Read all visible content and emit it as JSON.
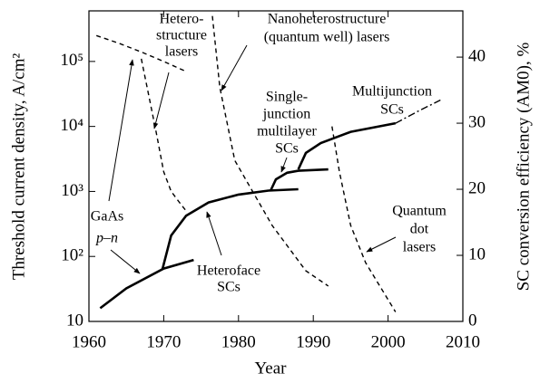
{
  "chart_data": {
    "type": "line",
    "xlabel": "Year",
    "ylabel": "Threshold current density, A/cm²",
    "y2label": "SC conversion efficiency (AM0), %",
    "xlim": [
      1960,
      2010
    ],
    "xticks": [
      1960,
      1970,
      1980,
      1990,
      2000,
      2010
    ],
    "ylim": [
      10,
      600000
    ],
    "ylog": true,
    "yticks": [
      10,
      {
        "value": 100,
        "label": "10²"
      },
      {
        "value": 1000,
        "label": "10³"
      },
      {
        "value": 10000,
        "label": "10⁴"
      },
      {
        "value": 100000,
        "label": "10⁵"
      }
    ],
    "y2lim": [
      0,
      47
    ],
    "y2ticks": [
      0,
      10,
      20,
      30,
      40
    ],
    "series": [
      {
        "color": "#000000",
        "style": "dashed",
        "axis": "y",
        "x": [
          1961,
          1964,
          1967,
          1970,
          1973
        ],
        "values": [
          250000,
          190000,
          140000,
          100000,
          70000
        ]
      },
      {
        "color": "#000000",
        "style": "dashed",
        "axis": "y",
        "x": [
          1967,
          1968,
          1969,
          1970,
          1971,
          1972,
          1973
        ],
        "values": [
          110000,
          30000,
          8000,
          2000,
          1000,
          700,
          500
        ]
      },
      {
        "color": "#000000",
        "style": "dashed",
        "axis": "y",
        "x": [
          1976.5,
          1977.5,
          1979.5,
          1984.5,
          1989,
          1992
        ],
        "values": [
          500000,
          40000,
          3000,
          300,
          60,
          35
        ]
      },
      {
        "color": "#000000",
        "style": "dashed",
        "axis": "y",
        "x": [
          1992.5,
          1993.5,
          1995,
          1997,
          2001
        ],
        "values": [
          10000,
          2000,
          300,
          80,
          14
        ]
      },
      {
        "color": "#000000",
        "style": "solid",
        "axis": "y2",
        "x": [
          1961.5,
          1965,
          1970,
          1974
        ],
        "values": [
          2,
          5,
          8,
          9.3
        ]
      },
      {
        "color": "#000000",
        "style": "solid",
        "axis": "y2",
        "x": [
          1969.8,
          1971,
          1973,
          1976,
          1980,
          1984,
          1988
        ],
        "values": [
          7.8,
          13,
          16,
          18,
          19.2,
          19.8,
          20
        ]
      },
      {
        "color": "#000000",
        "style": "solid",
        "axis": "y2",
        "x": [
          1984.3,
          1985,
          1986.5,
          1988,
          1992
        ],
        "values": [
          19.8,
          21.5,
          22.5,
          22.8,
          23
        ]
      },
      {
        "color": "#000000",
        "style": "solid",
        "axis": "y2",
        "x": [
          1988,
          1989,
          1991,
          1995,
          2001
        ],
        "values": [
          23,
          25.5,
          27,
          28.7,
          30
        ]
      },
      {
        "color": "#000000",
        "style": "dashdot",
        "axis": "y2",
        "x": [
          2001,
          2004,
          2007
        ],
        "values": [
          30,
          31.8,
          33.5
        ]
      }
    ],
    "annotations": [
      {
        "lines": [
          "GaAs",
          "p–n"
        ]
      },
      {
        "lines": [
          "Hetero-",
          "structure",
          "lasers"
        ]
      },
      {
        "lines": [
          "Nanoheterostructure",
          "(quantum well) lasers"
        ]
      },
      {
        "lines": [
          "Single-",
          "junction",
          "multilayer",
          "SCs"
        ]
      },
      {
        "lines": [
          "Multijunction",
          "SCs"
        ]
      },
      {
        "lines": [
          "Quantum",
          "dot",
          "lasers"
        ]
      },
      {
        "lines": [
          "Heteroface",
          "SCs"
        ]
      }
    ]
  }
}
